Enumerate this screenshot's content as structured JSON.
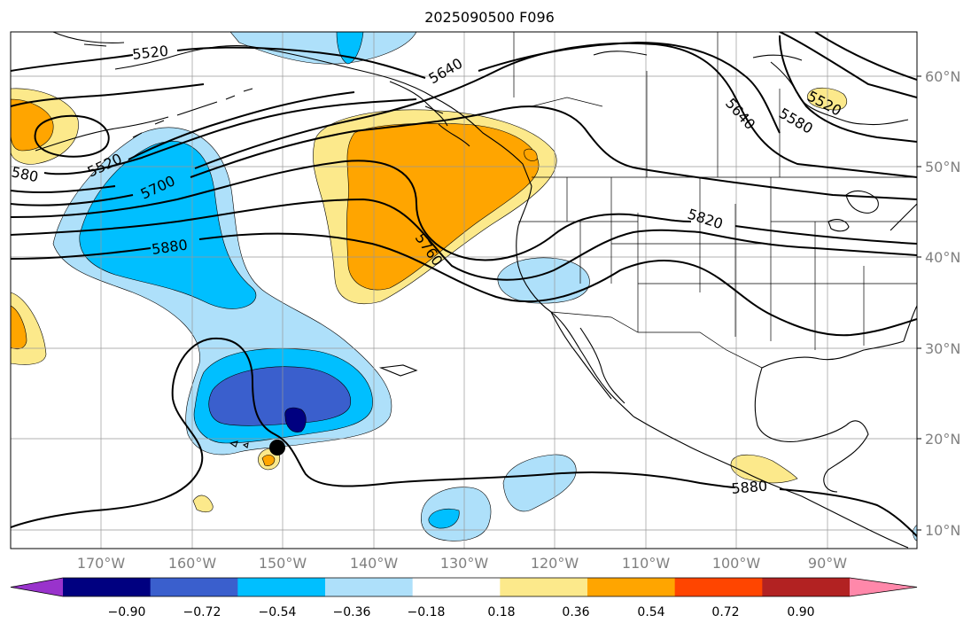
{
  "title": "2025090500 F096",
  "latitude_labels": [
    "60°N",
    "50°N",
    "40°N",
    "30°N",
    "20°N",
    "10°N"
  ],
  "longitude_labels": [
    "170°W",
    "160°W",
    "150°W",
    "140°W",
    "130°W",
    "120°W",
    "110°W",
    "100°W",
    "90°W"
  ],
  "colorbar": {
    "tick_labels": [
      "−0.90",
      "−0.72",
      "−0.54",
      "−0.36",
      "−0.18",
      "0.18",
      "0.36",
      "0.54",
      "0.72",
      "0.90"
    ],
    "colors": [
      "#9933cc",
      "#000080",
      "#3a5fcd",
      "#00bfff",
      "#aee0fa",
      "#ffffff",
      "#fce98b",
      "#ffa500",
      "#ff4500",
      "#b22222",
      "#ff88aa"
    ],
    "extend": "both"
  },
  "contour_labels": [
    "5520",
    "5640",
    "5520",
    "5700",
    "5880",
    "5760",
    "5820",
    "5640",
    "5580",
    "5520",
    "580",
    "5880"
  ],
  "colors": {
    "contour": "#000000",
    "gridline": "#999999",
    "coastline": "#000000",
    "storm_marker": "#000000"
  }
}
